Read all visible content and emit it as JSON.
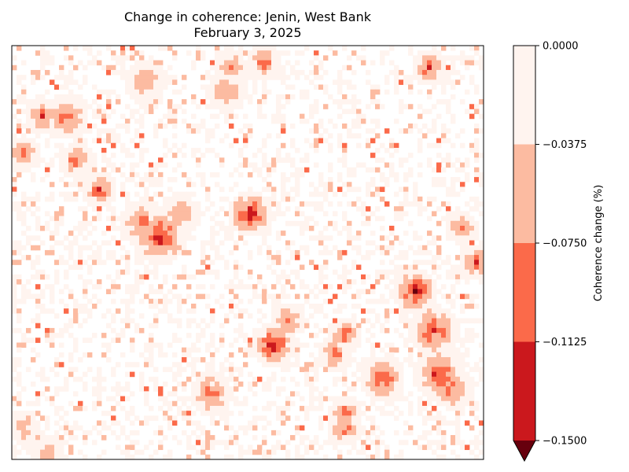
{
  "chart_data": {
    "type": "heatmap",
    "title": "Change in coherence: Jenin, West Bank",
    "subtitle": "February 3, 2025",
    "xlabel": "",
    "ylabel": "",
    "grid": false,
    "colorbar": {
      "label": "Coherence change (%)",
      "ticks": [
        "0.0000",
        "−0.0375",
        "−0.0750",
        "−0.1125",
        "−0.1500"
      ],
      "levels": [
        0.0,
        -0.0375,
        -0.075,
        -0.1125,
        -0.15
      ],
      "bands": [
        {
          "range": [
            -0.0375,
            0.0
          ],
          "color": "#fff4ef"
        },
        {
          "range": [
            -0.075,
            -0.0375
          ],
          "color": "#fcbba1"
        },
        {
          "range": [
            -0.1125,
            -0.075
          ],
          "color": "#fb6a4a"
        },
        {
          "range": [
            -0.15,
            -0.1125
          ],
          "color": "#cb181d"
        }
      ],
      "under_color": "#67000d",
      "extend": "min",
      "placement": "right"
    },
    "grid_size": [
      100,
      85
    ],
    "hotspots": [
      {
        "col": 31,
        "row": 39,
        "r": 4,
        "peak": 4
      },
      {
        "col": 50,
        "row": 34,
        "r": 3,
        "peak": 4
      },
      {
        "col": 55,
        "row": 61,
        "r": 3,
        "peak": 4
      },
      {
        "col": 18,
        "row": 29,
        "r": 2,
        "peak": 3.5
      },
      {
        "col": 13,
        "row": 23,
        "r": 2,
        "peak": 3
      },
      {
        "col": 11,
        "row": 14,
        "r": 3,
        "peak": 3.5
      },
      {
        "col": 6,
        "row": 14,
        "r": 2,
        "peak": 3
      },
      {
        "col": 2,
        "row": 22,
        "r": 2,
        "peak": 3
      },
      {
        "col": 85,
        "row": 50,
        "r": 3,
        "peak": 4
      },
      {
        "col": 89,
        "row": 58,
        "r": 4,
        "peak": 3.5
      },
      {
        "col": 90,
        "row": 67,
        "r": 4,
        "peak": 3.5
      },
      {
        "col": 93,
        "row": 70,
        "r": 3,
        "peak": 3
      },
      {
        "col": 70,
        "row": 59,
        "r": 2,
        "peak": 3
      },
      {
        "col": 78,
        "row": 68,
        "r": 3,
        "peak": 3.5
      },
      {
        "col": 70,
        "row": 78,
        "r": 2,
        "peak": 3
      },
      {
        "col": 98,
        "row": 44,
        "r": 2,
        "peak": 3.5
      },
      {
        "col": 88,
        "row": 4,
        "r": 2,
        "peak": 3.5
      },
      {
        "col": 53,
        "row": 3,
        "r": 2,
        "peak": 3
      },
      {
        "col": 46,
        "row": 4,
        "r": 2,
        "peak": 2.5
      },
      {
        "col": 45,
        "row": 9,
        "r": 3,
        "peak": 2.5
      },
      {
        "col": 28,
        "row": 7,
        "r": 3,
        "peak": 2.5
      },
      {
        "col": 42,
        "row": 71,
        "r": 3,
        "peak": 3
      },
      {
        "col": 58,
        "row": 56,
        "r": 2,
        "peak": 3
      },
      {
        "col": 70,
        "row": 75,
        "r": 2,
        "peak": 3
      },
      {
        "col": 68,
        "row": 63,
        "r": 2,
        "peak": 3
      },
      {
        "col": 95,
        "row": 37,
        "r": 2,
        "peak": 2.5
      },
      {
        "col": 2,
        "row": 78,
        "r": 2,
        "peak": 2.5
      },
      {
        "col": 7,
        "row": 83,
        "r": 2,
        "peak": 2.5
      },
      {
        "col": 35,
        "row": 34,
        "r": 3,
        "peak": 2.5
      },
      {
        "col": 27,
        "row": 36,
        "r": 3,
        "peak": 3
      }
    ]
  }
}
